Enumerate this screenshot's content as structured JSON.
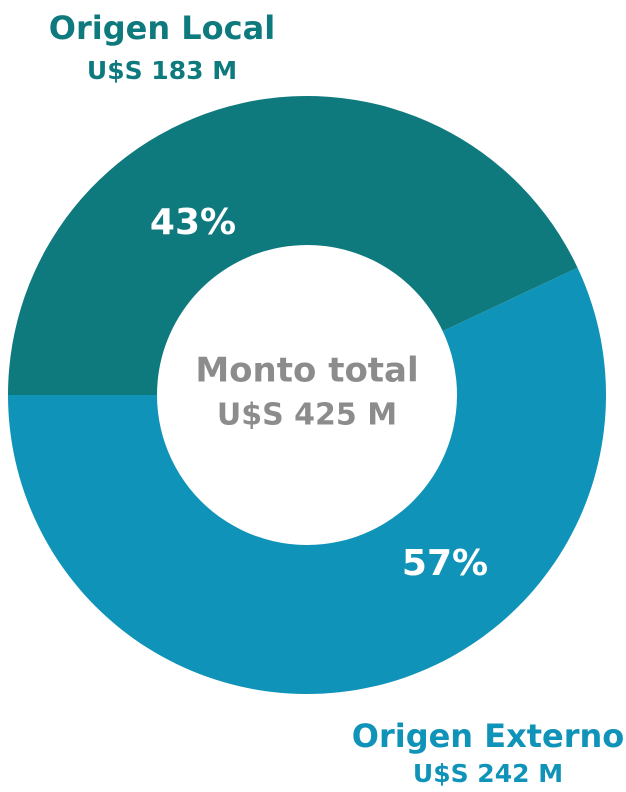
{
  "chart_data": {
    "type": "donut",
    "categories": [
      "Origen Local",
      "Origen Externo"
    ],
    "amounts": [
      "U$S 183 M",
      "U$S 242 M"
    ],
    "values": [
      43,
      57
    ],
    "value_labels": [
      "43%",
      "57%"
    ],
    "colors": [
      "#0e7a7e",
      "#1093b8"
    ],
    "center_label": [
      "Monto total",
      "U$S 425 M"
    ]
  }
}
